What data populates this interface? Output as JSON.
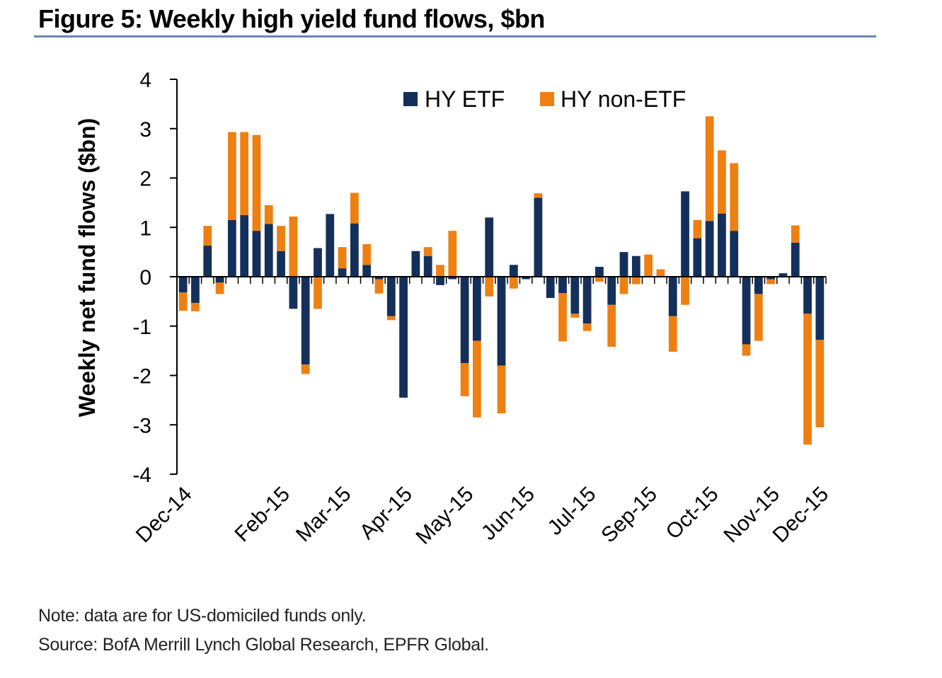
{
  "figure": {
    "title": "Figure 5: Weekly high yield fund flows, $bn",
    "note": "Note: data are for US-domiciled funds only.",
    "source": "Source: BofA Merrill Lynch Global Research, EPFR Global."
  },
  "colors": {
    "etf": "#14305a",
    "non_etf": "#ee8012",
    "rule": "#6b86b3"
  },
  "chart_data": {
    "type": "bar",
    "stacked": true,
    "ylabel": "Weekly net fund flows ($bn)",
    "ylim": [
      -4,
      4
    ],
    "yticks": [
      4,
      3,
      2,
      1,
      0,
      -1,
      -2,
      -3,
      -4
    ],
    "xtick_labels": [
      "Dec-14",
      "Feb-15",
      "Mar-15",
      "Apr-15",
      "May-15",
      "Jun-15",
      "Jul-15",
      "Sep-15",
      "Oct-15",
      "Nov-15",
      "Dec-15"
    ],
    "xtick_positions": [
      0,
      8,
      13,
      18,
      23,
      28,
      33,
      38,
      43,
      48,
      52
    ],
    "legend": {
      "position": "top-right",
      "etf_label": "HY ETF",
      "non_etf_label": "HY non-ETF"
    },
    "series": [
      {
        "name": "HY ETF",
        "values": [
          -0.32,
          -0.53,
          0.63,
          -0.12,
          1.15,
          1.25,
          0.93,
          1.07,
          0.52,
          -0.65,
          -1.78,
          0.58,
          1.27,
          0.17,
          1.08,
          0.24,
          -0.05,
          -0.8,
          -2.45,
          0.52,
          0.42,
          -0.17,
          -0.05,
          -1.75,
          -1.3,
          1.2,
          -1.8,
          0.24,
          -0.05,
          1.6,
          -0.43,
          -0.33,
          -0.75,
          -0.95,
          0.2,
          -0.57,
          0.5,
          0.42,
          0.0,
          0.0,
          -0.8,
          1.73,
          0.78,
          1.13,
          1.28,
          0.93,
          -1.37,
          -0.35,
          -0.05,
          0.07,
          0.69,
          -0.75,
          -1.28
        ]
      },
      {
        "name": "HY non-ETF",
        "values": [
          -0.37,
          -0.17,
          0.4,
          -0.23,
          1.78,
          1.68,
          1.94,
          0.38,
          0.51,
          1.22,
          -0.19,
          -0.65,
          0.0,
          0.43,
          0.62,
          0.42,
          -0.29,
          -0.08,
          0.0,
          0.0,
          0.18,
          0.24,
          0.93,
          -0.67,
          -1.55,
          -0.4,
          -0.97,
          -0.24,
          0.0,
          0.09,
          0.0,
          -0.98,
          -0.08,
          -0.15,
          -0.1,
          -0.85,
          -0.35,
          -0.15,
          0.45,
          0.15,
          -0.72,
          -0.57,
          0.37,
          2.12,
          1.28,
          1.37,
          -0.23,
          -0.95,
          -0.1,
          0.0,
          0.35,
          -2.65,
          -1.77
        ]
      }
    ]
  }
}
